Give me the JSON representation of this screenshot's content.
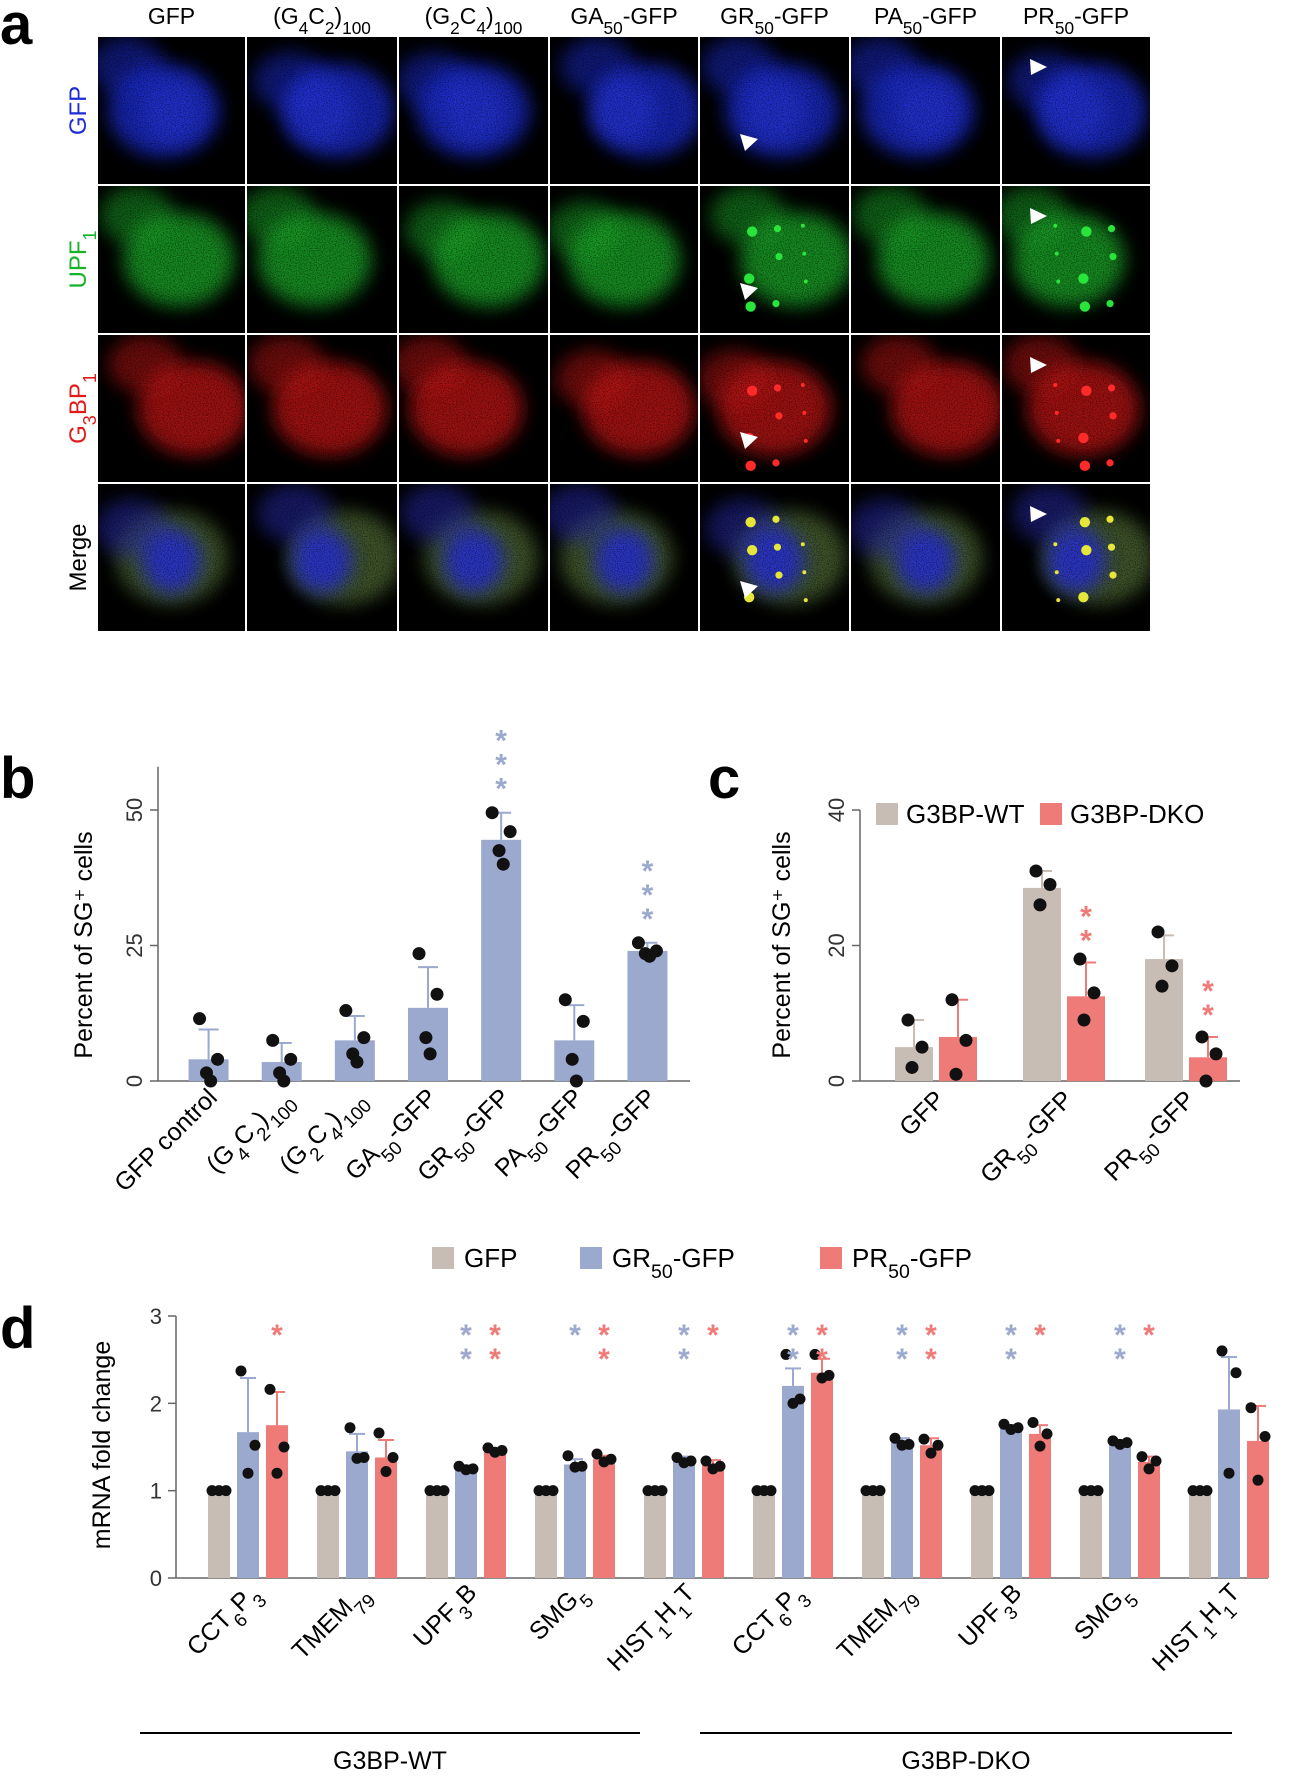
{
  "panel_labels": [
    "a",
    "b",
    "c",
    "d"
  ],
  "panel_a": {
    "columns": [
      "GFP",
      "(G4C2)100",
      "(G2C4)100",
      "GA50-GFP",
      "GR50-GFP",
      "PA50-GFP",
      "PR50-GFP"
    ],
    "rows": [
      {
        "label": "GFP",
        "color": "#1f2bd6",
        "tint": "#1e2fd8"
      },
      {
        "label": "UPF1",
        "color": "#17b22a",
        "tint": "#1fae2c"
      },
      {
        "label": "G3BP1",
        "color": "#e01b1b",
        "tint": "#c81818"
      },
      {
        "label": "Merge",
        "color": "#000000",
        "tint": "#4a5a3a"
      }
    ],
    "arrow_panels": [
      [
        0,
        4
      ],
      [
        0,
        6
      ],
      [
        1,
        4
      ],
      [
        1,
        6
      ],
      [
        2,
        4
      ],
      [
        2,
        6
      ],
      [
        3,
        4
      ],
      [
        3,
        6
      ]
    ],
    "scale_bar": true
  },
  "chart_data": [
    {
      "panel": "b",
      "type": "bar",
      "categories": [
        "GFP control",
        "(G4C2)100",
        "(G2C4)100",
        "GA50-GFP",
        "GR50-GFP",
        "PA50-GFP",
        "PR50-GFP"
      ],
      "values": [
        4,
        3.5,
        7.5,
        13.5,
        44.5,
        7.5,
        24
      ],
      "errors": [
        5.5,
        3.5,
        4.5,
        7.5,
        5,
        6.5,
        1.5
      ],
      "points": [
        [
          11.5,
          4,
          1.5,
          0
        ],
        [
          7.5,
          4,
          1.5,
          0
        ],
        [
          13,
          8,
          5,
          3.5
        ],
        [
          23.5,
          16,
          8,
          5
        ],
        [
          49.5,
          46,
          42.5,
          40
        ],
        [
          15,
          11,
          4,
          0
        ],
        [
          25.5,
          24,
          23.5,
          23
        ]
      ],
      "significance": [
        "",
        "",
        "",
        "",
        "***",
        "",
        "***"
      ],
      "bar_color": "#9ca9cf",
      "ylabel": "Percent of SG⁺ cells",
      "yticks": [
        0,
        25,
        50
      ],
      "ylim": [
        0,
        58
      ]
    },
    {
      "panel": "c",
      "type": "bar",
      "categories": [
        "GFP",
        "GR50-GFP",
        "PR50-GFP"
      ],
      "series": [
        {
          "name": "G3BP-WT",
          "color": "#c8bdb5",
          "values": [
            5,
            28.5,
            18
          ],
          "errors": [
            4,
            2.5,
            3.5
          ],
          "points": [
            [
              9,
              5,
              2
            ],
            [
              31,
              29,
              26
            ],
            [
              22,
              17,
              14
            ]
          ],
          "significance": [
            "",
            "",
            ""
          ]
        },
        {
          "name": "G3BP-DKO",
          "color": "#ef7b78",
          "values": [
            6.5,
            12.5,
            3.5
          ],
          "errors": [
            5.5,
            5,
            3
          ],
          "points": [
            [
              12,
              6,
              1
            ],
            [
              18,
              13,
              9
            ],
            [
              6.5,
              4,
              0
            ]
          ],
          "significance": [
            "",
            "**",
            "**"
          ]
        }
      ],
      "ylabel": "Percent of SG⁺ cells",
      "yticks": [
        0,
        20,
        40
      ],
      "ylim": [
        0,
        40
      ],
      "legend_position": "top"
    },
    {
      "panel": "d",
      "type": "bar",
      "categories": [
        "CCT6P3",
        "TMEM79",
        "UPF3B",
        "SMG5",
        "HIST1H1T",
        "CCT6P3",
        "TMEM79",
        "UPF3B",
        "SMG5",
        "HIST1H1T"
      ],
      "groups": [
        {
          "label": "G3BP-WT",
          "from": 0,
          "to": 4
        },
        {
          "label": "G3BP-DKO",
          "from": 5,
          "to": 9
        }
      ],
      "series": [
        {
          "name": "GFP",
          "color": "#c8bdb5",
          "values": [
            1,
            1,
            1,
            1,
            1,
            1,
            1,
            1,
            1,
            1
          ],
          "errors": [
            0,
            0,
            0,
            0,
            0,
            0,
            0,
            0,
            0,
            0
          ],
          "points": [
            [
              1,
              1,
              1
            ],
            [
              1,
              1,
              1
            ],
            [
              1,
              1,
              1
            ],
            [
              1,
              1,
              1
            ],
            [
              1,
              1,
              1
            ],
            [
              1,
              1,
              1
            ],
            [
              1,
              1,
              1
            ],
            [
              1,
              1,
              1
            ],
            [
              1,
              1,
              1
            ],
            [
              1,
              1,
              1
            ]
          ],
          "significance": [
            "",
            "",
            "",
            "",
            "",
            "",
            "",
            "",
            "",
            ""
          ]
        },
        {
          "name": "GR50-GFP",
          "color": "#9ca9cf",
          "values": [
            1.67,
            1.45,
            1.26,
            1.3,
            1.35,
            2.2,
            1.55,
            1.72,
            1.55,
            1.93
          ],
          "errors": [
            0.62,
            0.2,
            0.03,
            0.06,
            0.04,
            0.2,
            0.05,
            0.03,
            0.03,
            0.6
          ],
          "points": [
            [
              2.37,
              1.52,
              1.2
            ],
            [
              1.72,
              1.38,
              1.37
            ],
            [
              1.28,
              1.25,
              1.24
            ],
            [
              1.4,
              1.28,
              1.27
            ],
            [
              1.38,
              1.34,
              1.32
            ],
            [
              2.56,
              2.05,
              2.0
            ],
            [
              1.6,
              1.53,
              1.52
            ],
            [
              1.76,
              1.72,
              1.7
            ],
            [
              1.57,
              1.55,
              1.53
            ],
            [
              2.6,
              2.35,
              1.2
            ]
          ],
          "significance": [
            "",
            "",
            "**",
            "*",
            "**",
            "**",
            "**",
            "**",
            "**",
            ""
          ]
        },
        {
          "name": "PR50-GFP",
          "color": "#ef7b78",
          "values": [
            1.75,
            1.38,
            1.46,
            1.36,
            1.3,
            2.35,
            1.52,
            1.65,
            1.33,
            1.57
          ],
          "errors": [
            0.38,
            0.2,
            0.02,
            0.04,
            0.05,
            0.16,
            0.08,
            0.1,
            0.06,
            0.4
          ],
          "points": [
            [
              2.16,
              1.5,
              1.2
            ],
            [
              1.66,
              1.38,
              1.22
            ],
            [
              1.49,
              1.46,
              1.44
            ],
            [
              1.42,
              1.36,
              1.33
            ],
            [
              1.34,
              1.28,
              1.25
            ],
            [
              2.56,
              2.32,
              2.29
            ],
            [
              1.59,
              1.52,
              1.43
            ],
            [
              1.78,
              1.65,
              1.51
            ],
            [
              1.39,
              1.34,
              1.25
            ],
            [
              1.95,
              1.62,
              1.12
            ]
          ],
          "significance": [
            "*",
            "",
            "**",
            "**",
            "*",
            "**",
            "**",
            "*",
            "*",
            ""
          ]
        }
      ],
      "ylabel": "mRNA fold change",
      "yticks": [
        0,
        1,
        2,
        3
      ],
      "ylim": [
        0,
        3
      ],
      "legend_position": "top"
    }
  ]
}
